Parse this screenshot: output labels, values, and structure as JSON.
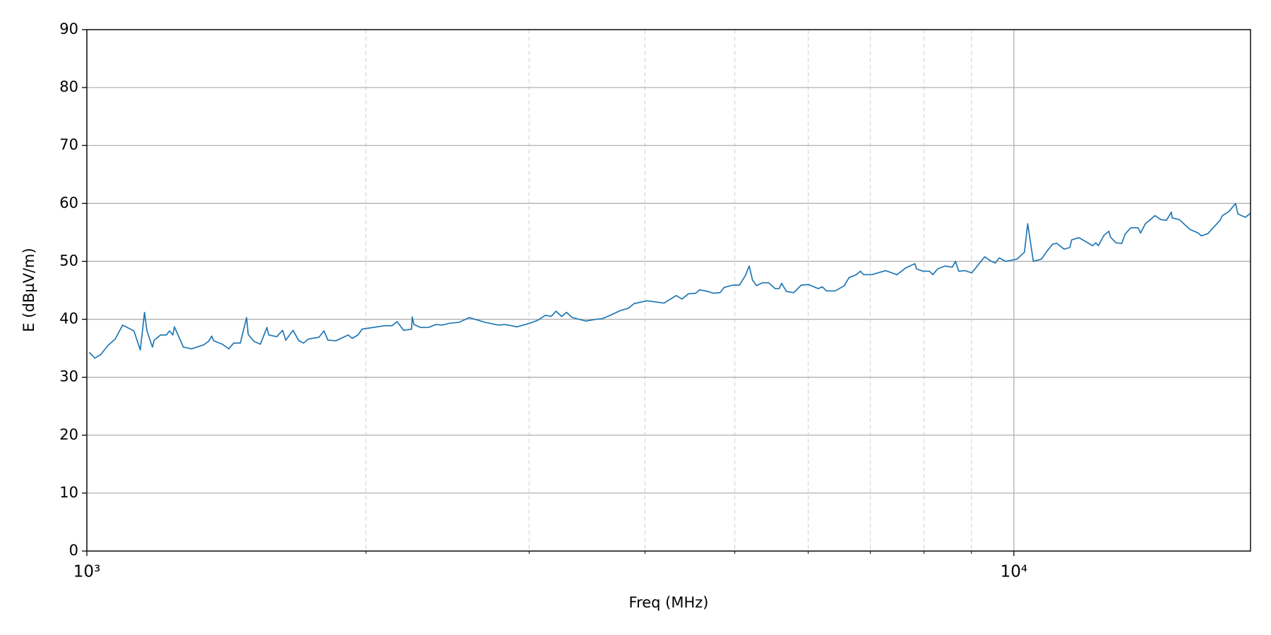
{
  "chart_data": {
    "type": "line",
    "xlabel": "Freq (MHz)",
    "ylabel": "E (dBµV/m)",
    "xscale": "log",
    "grid": true,
    "minor_grid": true,
    "color": "#1f77b4",
    "xlim": [
      1000,
      18000
    ],
    "ylim": [
      0,
      90
    ],
    "xticks": [
      {
        "value": 1000,
        "label": "10³"
      },
      {
        "value": 10000,
        "label": "10⁴"
      }
    ],
    "xminorticks": [
      2000,
      3000,
      4000,
      5000,
      6000,
      7000,
      8000,
      9000
    ],
    "yticks": [
      0,
      10,
      20,
      30,
      40,
      50,
      60,
      70,
      80,
      90
    ],
    "x": [
      1006,
      1020,
      1035,
      1054,
      1073,
      1093,
      1124,
      1142,
      1154,
      1161,
      1177,
      1182,
      1201,
      1218,
      1228,
      1238,
      1243,
      1271,
      1297,
      1337,
      1353,
      1364,
      1370,
      1400,
      1423,
      1440,
      1464,
      1487,
      1493,
      1514,
      1539,
      1564,
      1571,
      1603,
      1626,
      1639,
      1669,
      1693,
      1713,
      1734,
      1780,
      1802,
      1820,
      1857,
      1914,
      1933,
      1961,
      1981,
      2097,
      2135,
      2161,
      2196,
      2240,
      2244,
      2253,
      2291,
      2337,
      2380,
      2418,
      2458,
      2523,
      2585,
      2686,
      2780,
      2825,
      2912,
      3002,
      3062,
      3124,
      3169,
      3207,
      3253,
      3292,
      3339,
      3456,
      3540,
      3597,
      3671,
      3761,
      3838,
      3892,
      4019,
      4194,
      4323,
      4385,
      4456,
      4537,
      4583,
      4677,
      4743,
      4820,
      4869,
      4978,
      5058,
      5131,
      5182,
      5224,
      5277,
      5352,
      5439,
      5527,
      5583,
      5617,
      5685,
      5789,
      5896,
      6004,
      6152,
      6214,
      6277,
      6418,
      6561,
      6640,
      6762,
      6831,
      6886,
      7027,
      7272,
      7480,
      7649,
      7820,
      7851,
      7979,
      8109,
      8175,
      8275,
      8427,
      8582,
      8650,
      8720,
      8862,
      9006,
      9152,
      9301,
      9433,
      9548,
      9644,
      9800,
      10081,
      10266,
      10349,
      10496,
      10710,
      10862,
      11016,
      11128,
      11332,
      11493,
      11541,
      11750,
      12015,
      12160,
      12258,
      12334,
      12509,
      12661,
      12711,
      12888,
      13073,
      13183,
      13369,
      13614,
      13697,
      13864,
      14203,
      14405,
      14609,
      14788,
      14818,
      15087,
      15488,
      15805,
      15933,
      16192,
      16688,
      16789,
      17061,
      17342,
      17446,
      17765,
      18000
    ],
    "values": [
      34.3,
      33.3,
      33.9,
      35.5,
      36.6,
      39.0,
      38.0,
      34.7,
      41.2,
      38.0,
      35.2,
      36.4,
      37.3,
      37.3,
      38.0,
      37.3,
      38.7,
      35.2,
      34.9,
      35.6,
      36.2,
      37.1,
      36.3,
      35.7,
      34.9,
      35.9,
      35.9,
      40.3,
      37.4,
      36.2,
      35.7,
      38.6,
      37.3,
      37.0,
      38.1,
      36.4,
      38.1,
      36.3,
      35.9,
      36.6,
      36.9,
      38.0,
      36.4,
      36.3,
      37.3,
      36.7,
      37.3,
      38.3,
      38.9,
      38.9,
      39.6,
      38.1,
      38.3,
      40.4,
      39.1,
      38.6,
      38.6,
      39.1,
      39.0,
      39.3,
      39.5,
      40.3,
      39.5,
      39.0,
      39.1,
      38.7,
      39.3,
      39.8,
      40.7,
      40.5,
      41.4,
      40.5,
      41.2,
      40.3,
      39.7,
      40.0,
      40.1,
      40.7,
      41.5,
      41.9,
      42.7,
      43.2,
      42.8,
      44.1,
      43.5,
      44.4,
      44.5,
      45.1,
      44.8,
      44.5,
      44.6,
      45.5,
      45.9,
      45.9,
      47.5,
      49.2,
      46.8,
      45.8,
      46.3,
      46.3,
      45.3,
      45.3,
      46.2,
      44.8,
      44.6,
      45.9,
      46.0,
      45.3,
      45.6,
      44.9,
      44.9,
      45.8,
      47.2,
      47.7,
      48.3,
      47.7,
      47.7,
      48.4,
      47.7,
      48.9,
      49.6,
      48.7,
      48.3,
      48.3,
      47.7,
      48.7,
      49.2,
      49.0,
      50.0,
      48.3,
      48.4,
      48.0,
      49.4,
      50.8,
      50.1,
      49.7,
      50.6,
      50.0,
      50.4,
      51.6,
      56.5,
      50.0,
      50.4,
      51.8,
      53.0,
      53.1,
      52.1,
      52.4,
      53.7,
      54.1,
      53.2,
      52.7,
      53.2,
      52.7,
      54.5,
      55.2,
      54.2,
      53.2,
      53.1,
      54.7,
      55.8,
      55.8,
      54.9,
      56.5,
      57.9,
      57.2,
      57.1,
      58.5,
      57.5,
      57.2,
      55.5,
      54.9,
      54.4,
      54.8,
      57.1,
      57.9,
      58.6,
      60.0,
      58.2,
      57.6,
      58.3
    ]
  }
}
